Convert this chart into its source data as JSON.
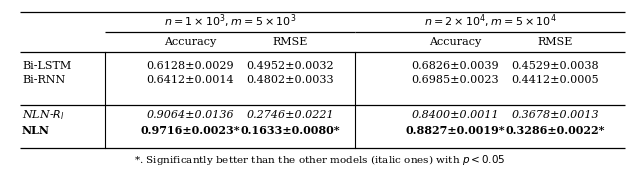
{
  "group1_header": "$n = 1 \\times 10^{3}, m = 5 \\times 10^{3}$",
  "group2_header": "$n = 2 \\times 10^{4}, m = 5 \\times 10^{4}$",
  "sub_headers": [
    "Accuracy",
    "RMSE",
    "Accuracy",
    "RMSE"
  ],
  "rows": [
    {
      "model": "Bi-LSTM",
      "style": "normal",
      "weight": "normal",
      "values": [
        "0.6128±0.0029",
        "0.4952±0.0032",
        "0.6826±0.0039",
        "0.4529±0.0038"
      ]
    },
    {
      "model": "Bi-RNN",
      "style": "normal",
      "weight": "normal",
      "values": [
        "0.6412±0.0014",
        "0.4802±0.0033",
        "0.6985±0.0023",
        "0.4412±0.0005"
      ]
    },
    {
      "model": "NLN-Rl",
      "style": "italic",
      "weight": "normal",
      "values": [
        "0.9064±0.0136",
        "0.2746±0.0221",
        "0.8400±0.0011",
        "0.3678±0.0013"
      ]
    },
    {
      "model": "NLN",
      "style": "normal",
      "weight": "bold",
      "values": [
        "0.9716±0.0023*",
        "0.1633±0.0080*",
        "0.8827±0.0019*",
        "0.3286±0.0022*"
      ]
    }
  ],
  "footnote": "*. Significantly better than the other models (italic ones) with $p < 0.05$",
  "bg_color": "#ffffff"
}
